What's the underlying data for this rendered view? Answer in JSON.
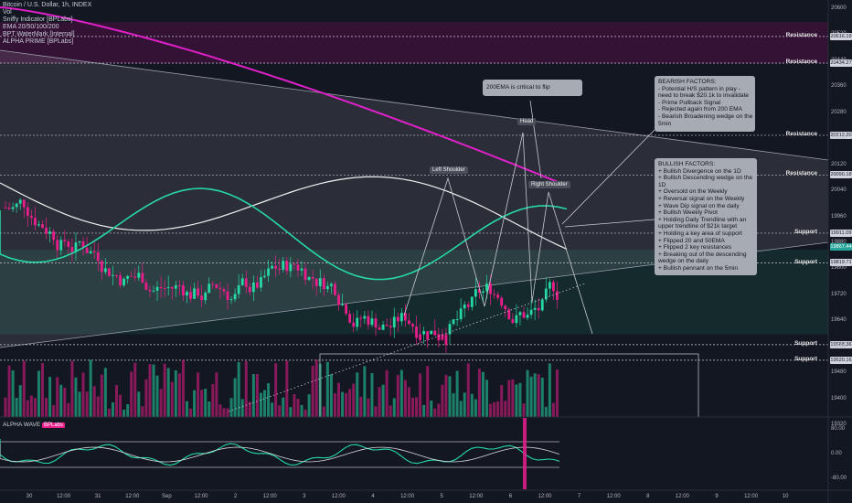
{
  "chart_data": {
    "type": "candlestick",
    "title": "Bitcoin / U.S. Dollar, 1h, INDEX",
    "indicators": [
      "Vol",
      "Sniffy Indicator [BPLabs]",
      "EMA 20/50/100/200",
      "BPT WaterMark [Internal]",
      "ALPHA PRIME [BPLabs]"
    ],
    "y_ticks": [
      "20600",
      "20520",
      "20440",
      "20360",
      "20280",
      "20200",
      "20120",
      "20040",
      "19960",
      "19880",
      "19800",
      "19720",
      "19640",
      "19560",
      "19480",
      "19400",
      "19320"
    ],
    "ylim": [
      19320,
      20600
    ],
    "x_ticks": [
      "30",
      "12:00",
      "31",
      "12:00",
      "Sep",
      "12:00",
      "2",
      "12:00",
      "3",
      "12:00",
      "4",
      "12:00",
      "5",
      "12:00",
      "6",
      "12:00",
      "7",
      "12:00",
      "8",
      "12:00",
      "9",
      "12:00",
      "10"
    ],
    "price_tags": [
      {
        "label": "20516.19",
        "color": "#d1d4dc"
      },
      {
        "label": "20434.27",
        "color": "#d1d4dc"
      },
      {
        "label": "20212.20",
        "color": "#d1d4dc"
      },
      {
        "label": "20090.18",
        "color": "#d1d4dc"
      },
      {
        "label": "19911.09",
        "color": "#d1d4dc"
      },
      {
        "label": "19867.44",
        "color": "#26a69a"
      },
      {
        "label": "19819.71",
        "color": "#d1d4dc"
      },
      {
        "label": "19568.36",
        "color": "#d1d4dc"
      },
      {
        "label": "19520.16",
        "color": "#d1d4dc"
      }
    ],
    "levels": [
      {
        "name": "Resistance",
        "price": 20516
      },
      {
        "name": "Resistance",
        "price": 20434
      },
      {
        "name": "Resistance",
        "price": 20212
      },
      {
        "name": "Resistance",
        "price": 20090
      },
      {
        "name": "Support",
        "price": 19911
      },
      {
        "name": "Support",
        "price": 19819
      },
      {
        "name": "Support",
        "price": 19568
      },
      {
        "name": "Support",
        "price": 19520
      }
    ],
    "oscillator": {
      "title": "ALPHA WAVE",
      "badge": "BPLabs",
      "y_ticks": [
        "80.00",
        "0.00",
        "-80.00"
      ]
    }
  },
  "annotations": {
    "ema_note": "200EMA is critical to flip",
    "left_shoulder": "Left Shoulder",
    "head": "Head",
    "right_shoulder": "Right Shoulder",
    "bearish": [
      "BEARISH FACTORS:",
      "- Potential H/S pattern in play -",
      "need to break $20.1k to invalidate",
      "- Prime Pullback Signal",
      "- Rejected again from 200 EMA",
      "- Bearish Broadening wedge on the",
      "5min"
    ],
    "bullish": [
      "BULLISH FACTORS:",
      "+ Bullish Divergence on the 1D",
      "+ Bullish Descending wedge on the",
      "1D",
      "+ Oversold on the Weekly",
      "+ Reversal signal on the Weekly",
      "+ Wave Dip signal on the daily",
      "+ Bullish Weekly Pivot",
      "+ Holding Daily Trendline with an",
      "upper trendline of $21k target",
      "+ Holding a key area of support",
      "+ Flipped 20 and 50EMA",
      "+ Flipped 2 key resistances",
      "+ Breaking out of the descending",
      "wedge on the daily",
      "+ Bullish pennant on the 5min"
    ]
  },
  "colors": {
    "background": "#131722",
    "bull": "#26d9a4",
    "bear": "#e91e8c",
    "ema200": "#e020c8",
    "note_bg": "#a7abb3"
  }
}
